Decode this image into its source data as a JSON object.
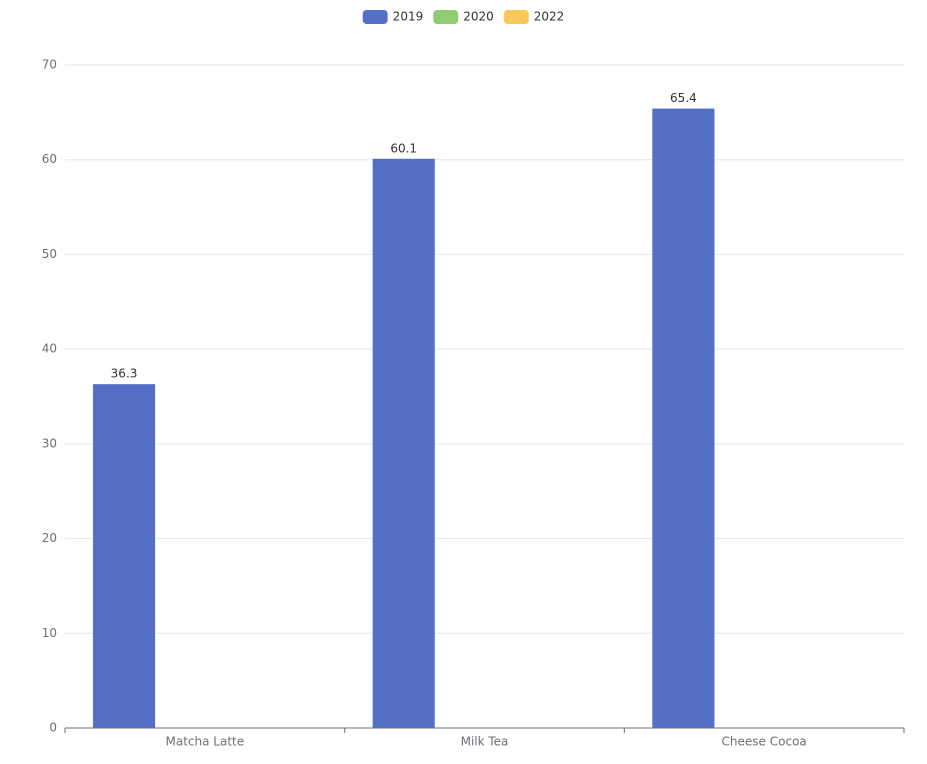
{
  "chart_data": {
    "type": "bar",
    "categories": [
      "Matcha Latte",
      "Milk Tea",
      "Cheese Cocoa"
    ],
    "series": [
      {
        "name": "2019",
        "color": "#5470c6",
        "values": [
          36.3,
          60.1,
          65.4
        ]
      },
      {
        "name": "2020",
        "color": "#91cc75",
        "values": [
          null,
          null,
          null
        ]
      },
      {
        "name": "2022",
        "color": "#fac858",
        "values": [
          null,
          null,
          null
        ]
      }
    ],
    "ylim": [
      0,
      70
    ],
    "yticks": [
      0,
      10,
      20,
      30,
      40,
      50,
      60,
      70
    ],
    "grid": true,
    "legend": "top"
  }
}
